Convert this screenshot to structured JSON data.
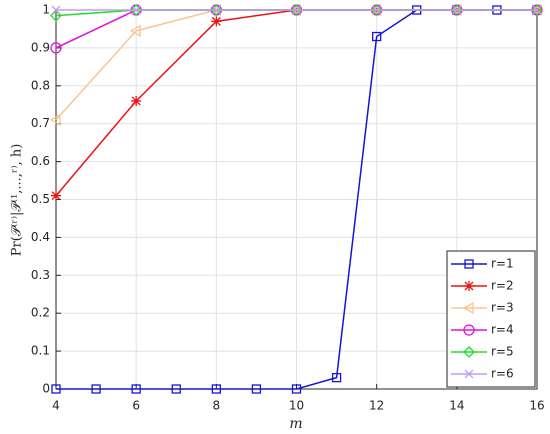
{
  "chart_data": {
    "type": "line",
    "xlabel": "m",
    "ylabel": "Pr(𝒫⁽ʳ⁾|𝒫⁽¹,...,ʳ⁾, h)",
    "xlim": [
      4,
      16
    ],
    "xticks": [
      4,
      6,
      8,
      10,
      12,
      14,
      16
    ],
    "ylim": [
      0,
      1
    ],
    "yticks": [
      0,
      0.1,
      0.2,
      0.3,
      0.4,
      0.5,
      0.6,
      0.7,
      0.8,
      0.9,
      1
    ],
    "grid": true,
    "legend": "lower right",
    "series": [
      {
        "name": "r=1",
        "color": "#1515d6",
        "marker": "square",
        "x": [
          4,
          5,
          6,
          7,
          8,
          9,
          10,
          11,
          12,
          13,
          14,
          15,
          16
        ],
        "values": [
          0,
          0,
          0,
          0,
          0,
          0,
          0,
          0.03,
          0.93,
          1,
          1,
          1,
          1
        ]
      },
      {
        "name": "r=2",
        "color": "#ee1111",
        "marker": "asterisk",
        "x": [
          4,
          6,
          8,
          10,
          12,
          14,
          16
        ],
        "values": [
          0.51,
          0.76,
          0.97,
          1,
          1,
          1,
          1
        ]
      },
      {
        "name": "r=3",
        "color": "#f8c690",
        "marker": "triangle-left",
        "x": [
          4,
          6,
          8,
          10,
          12,
          14,
          16
        ],
        "values": [
          0.71,
          0.945,
          1,
          1,
          1,
          1,
          1
        ]
      },
      {
        "name": "r=4",
        "color": "#e010e0",
        "marker": "circle",
        "x": [
          4,
          6,
          8,
          10,
          12,
          14,
          16
        ],
        "values": [
          0.9,
          1,
          1,
          1,
          1,
          1,
          1
        ]
      },
      {
        "name": "r=5",
        "color": "#22dd22",
        "marker": "diamond",
        "x": [
          4,
          6,
          8,
          10,
          12,
          14,
          16
        ],
        "values": [
          0.985,
          1,
          1,
          1,
          1,
          1,
          1
        ]
      },
      {
        "name": "r=6",
        "color": "#c49cf0",
        "marker": "x",
        "x": [
          4,
          6,
          8,
          10,
          12,
          14,
          16
        ],
        "values": [
          1,
          1,
          1,
          1,
          1,
          1,
          1
        ]
      }
    ]
  }
}
